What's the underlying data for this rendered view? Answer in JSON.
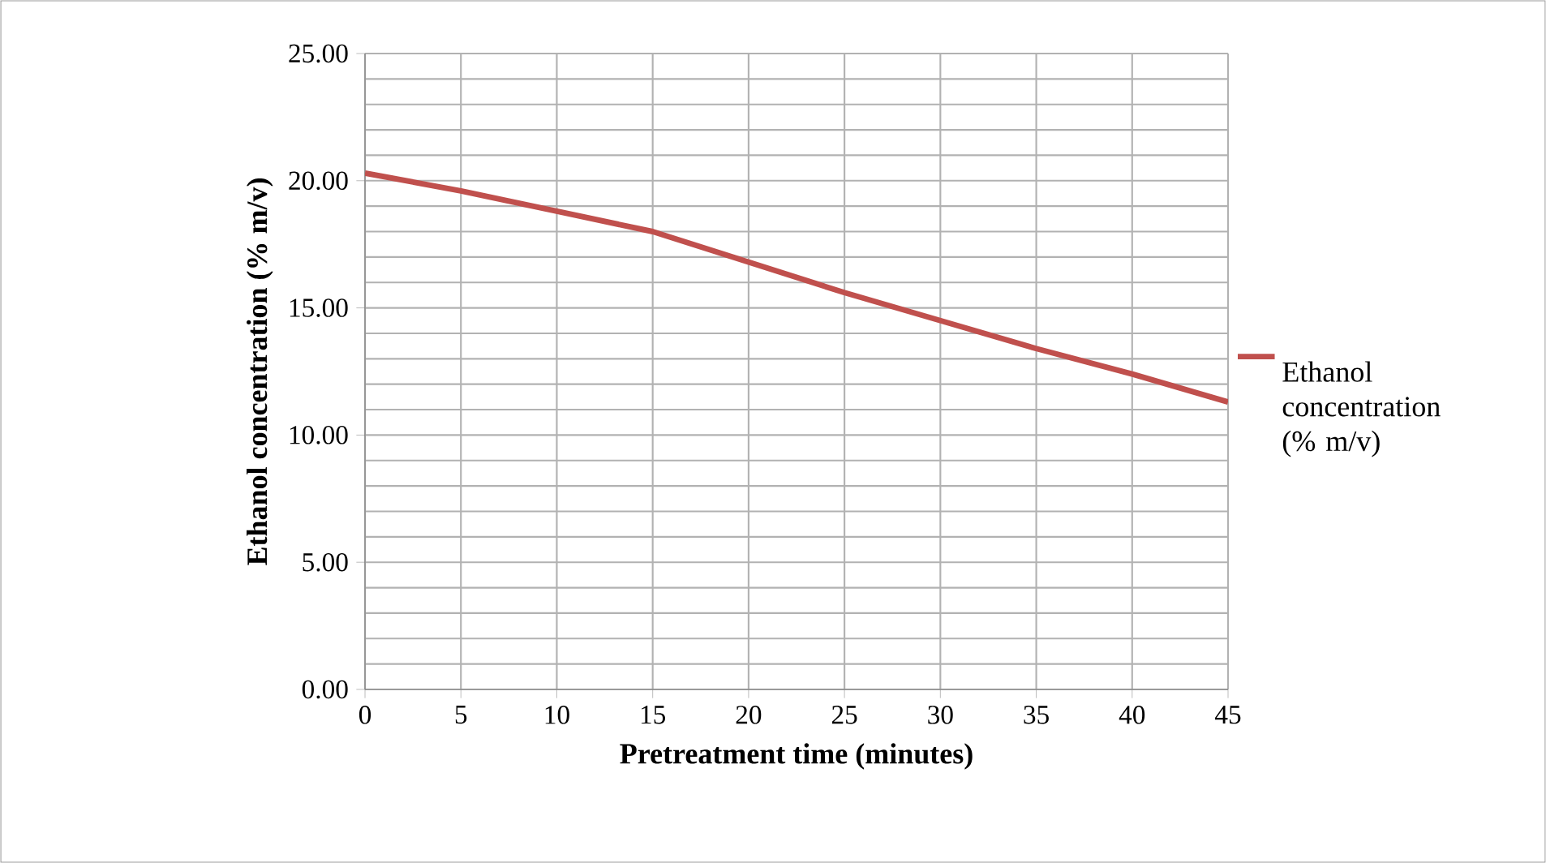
{
  "chart_data": {
    "type": "line",
    "xlabel": "Pretreatment time (minutes)",
    "ylabel": "Ethanol concentration (% m/v)",
    "x": [
      0,
      5,
      10,
      15,
      20,
      25,
      30,
      35,
      40,
      45
    ],
    "series": [
      {
        "name": "Ethanol concentration (% m/v)",
        "color": "#c0504d",
        "values": [
          20.3,
          19.6,
          18.8,
          18.0,
          16.8,
          15.6,
          14.5,
          13.4,
          12.4,
          11.3
        ]
      }
    ],
    "xlim": [
      0,
      45
    ],
    "ylim": [
      0,
      25
    ],
    "xticks": [
      0,
      5,
      10,
      15,
      20,
      25,
      30,
      35,
      40,
      45
    ],
    "yticks": [
      {
        "value": 0,
        "label": "0.00"
      },
      {
        "value": 5,
        "label": "5.00"
      },
      {
        "value": 10,
        "label": "10.00"
      },
      {
        "value": 15,
        "label": "15.00"
      },
      {
        "value": 20,
        "label": "20.00"
      },
      {
        "value": 25,
        "label": "25.00"
      }
    ],
    "grid": true,
    "legend": "right",
    "marker": "none",
    "line_style": "solid"
  }
}
